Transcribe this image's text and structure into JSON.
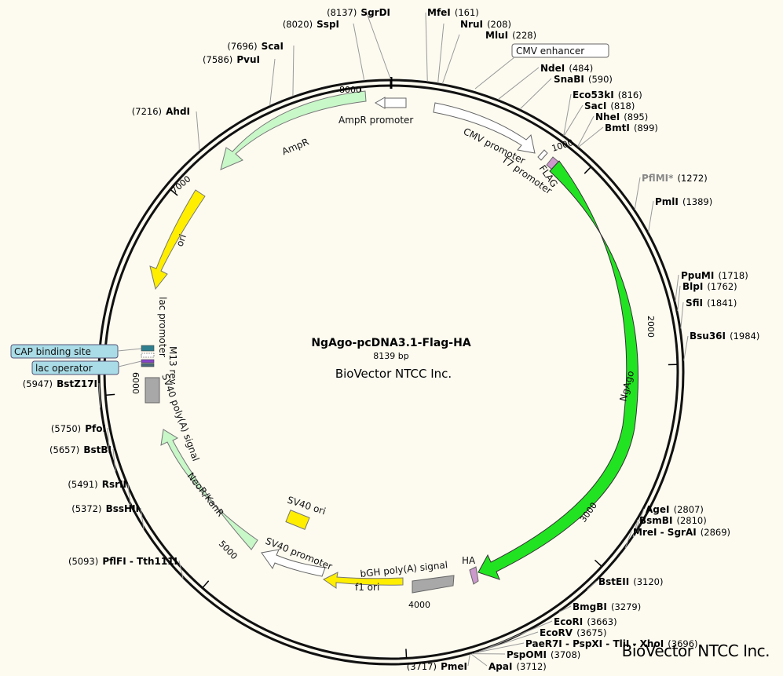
{
  "plasmid": {
    "name": "NgAgo-pcDNA3.1-Flag-HA",
    "size_label": "8139 bp",
    "organization": "BioVector NTCC Inc.",
    "watermark": "BioVector NTCC Inc.",
    "length_bp": 8139
  },
  "ticks": [
    {
      "bp": 1000,
      "label": "1000"
    },
    {
      "bp": 2000,
      "label": "2000"
    },
    {
      "bp": 3000,
      "label": "3000"
    },
    {
      "bp": 4000,
      "label": "4000"
    },
    {
      "bp": 5000,
      "label": "5000"
    },
    {
      "bp": 6000,
      "label": "6000"
    },
    {
      "bp": 7000,
      "label": "7000"
    },
    {
      "bp": 8000,
      "label": "8000"
    }
  ],
  "features": [
    {
      "id": "cmv-enhancer",
      "label": "CMV enhancer"
    },
    {
      "id": "cmv-promoter",
      "label": "CMV promoter"
    },
    {
      "id": "t7-promoter",
      "label": "T7 promoter"
    },
    {
      "id": "flag",
      "label": "FLAG"
    },
    {
      "id": "ngago",
      "label": "NgAgo"
    },
    {
      "id": "ha",
      "label": "HA"
    },
    {
      "id": "bgh",
      "label": "bGH poly(A) signal"
    },
    {
      "id": "f1-ori",
      "label": "f1 ori"
    },
    {
      "id": "sv40-promoter",
      "label": "SV40 promoter"
    },
    {
      "id": "sv40-ori",
      "label": "SV40 ori"
    },
    {
      "id": "neor",
      "label": "NeoR/KanR"
    },
    {
      "id": "sv40-polya",
      "label": "SV40 poly(A) signal"
    },
    {
      "id": "m13-rev",
      "label": "M13 rev"
    },
    {
      "id": "lac-promoter",
      "label": "lac promoter"
    },
    {
      "id": "cap-site",
      "label": "CAP binding site"
    },
    {
      "id": "lac-operator",
      "label": "lac operator"
    },
    {
      "id": "ori",
      "label": "ori"
    },
    {
      "id": "ampr",
      "label": "AmpR"
    },
    {
      "id": "ampr-promoter",
      "label": "AmpR promoter"
    }
  ],
  "sites": [
    {
      "name": "SgrDI",
      "pos": "(8137)"
    },
    {
      "name": "SspI",
      "pos": "(8020)"
    },
    {
      "name": "ScaI",
      "pos": "(7696)"
    },
    {
      "name": "PvuI",
      "pos": "(7586)"
    },
    {
      "name": "AhdI",
      "pos": "(7216)"
    },
    {
      "name": "MfeI",
      "pos": "(161)"
    },
    {
      "name": "NruI",
      "pos": "(208)"
    },
    {
      "name": "MluI",
      "pos": "(228)"
    },
    {
      "name": "NdeI",
      "pos": "(484)"
    },
    {
      "name": "SnaBI",
      "pos": "(590)"
    },
    {
      "name": "Eco53kI",
      "pos": "(816)"
    },
    {
      "name": "SacI",
      "pos": "(818)"
    },
    {
      "name": "NheI",
      "pos": "(895)"
    },
    {
      "name": "BmtI",
      "pos": "(899)"
    },
    {
      "name": "PflMI*",
      "pos": "(1272)"
    },
    {
      "name": "PmlI",
      "pos": "(1389)"
    },
    {
      "name": "PpuMI",
      "pos": "(1718)"
    },
    {
      "name": "BlpI",
      "pos": "(1762)"
    },
    {
      "name": "SfiI",
      "pos": "(1841)"
    },
    {
      "name": "Bsu36I",
      "pos": "(1984)"
    },
    {
      "name": "AgeI",
      "pos": "(2807)"
    },
    {
      "name": "BsmBI",
      "pos": "(2810)"
    },
    {
      "name": "MreI - SgrAI",
      "pos": "(2869)"
    },
    {
      "name": "BstEII",
      "pos": "(3120)"
    },
    {
      "name": "BmgBI",
      "pos": "(3279)"
    },
    {
      "name": "EcoRI",
      "pos": "(3663)"
    },
    {
      "name": "EcoRV",
      "pos": "(3675)"
    },
    {
      "name": "PaeR7I - PspXI - TliI - XhoI",
      "pos": "(3696)"
    },
    {
      "name": "PspOMI",
      "pos": "(3708)"
    },
    {
      "name": "ApaI",
      "pos": "(3712)"
    },
    {
      "name": "PmeI",
      "pos": "(3717)"
    },
    {
      "name": "PflFI - Tth111I",
      "pos": "(5093)"
    },
    {
      "name": "BssHII",
      "pos": "(5372)"
    },
    {
      "name": "RsrII",
      "pos": "(5491)"
    },
    {
      "name": "BstBI",
      "pos": "(5657)"
    },
    {
      "name": "PfoI",
      "pos": "(5750)"
    },
    {
      "name": "BstZ17I",
      "pos": "(5947)"
    }
  ],
  "colors": {
    "background": "#fdfbf0",
    "backbone": "#111111",
    "ngago": "#22e322",
    "ampr": "#c8f7c8",
    "ori": "#ffee00",
    "neor": "#c8f7c8",
    "promoter": "#ffffff",
    "polya": "#a8a8a8",
    "tag": "#cc99cc",
    "cap_fill": "#a9dce6"
  }
}
